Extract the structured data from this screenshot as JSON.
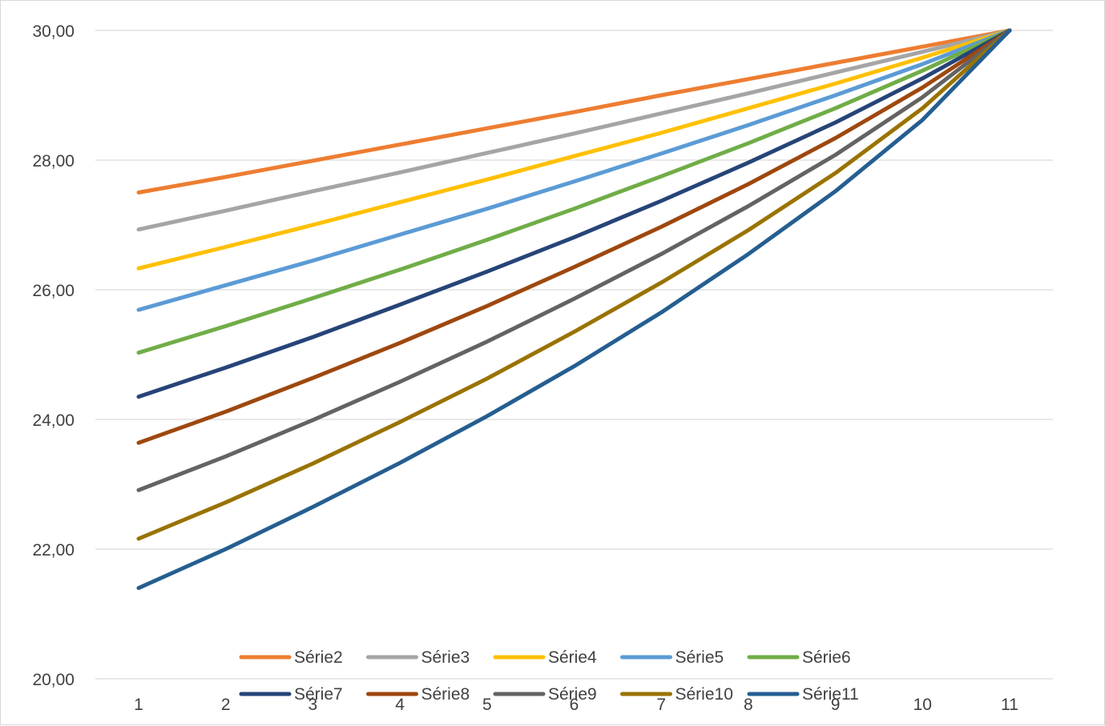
{
  "chart_data": {
    "type": "line",
    "title": "",
    "xlabel": "",
    "ylabel": "",
    "x": [
      1,
      2,
      3,
      4,
      5,
      6,
      7,
      8,
      9,
      10,
      11
    ],
    "x_tick_labels": [
      "1",
      "2",
      "3",
      "4",
      "5",
      "6",
      "7",
      "8",
      "9",
      "10",
      "11"
    ],
    "ylim": [
      20,
      30
    ],
    "y_tick_labels": [
      "20,00",
      "22,00",
      "24,00",
      "26,00",
      "28,00",
      "30,00"
    ],
    "y_ticks": [
      20,
      22,
      24,
      26,
      28,
      30
    ],
    "grid": "horizontal",
    "legend_position": "bottom",
    "series": [
      {
        "name": "Série2",
        "color": "#ED7D31",
        "values": [
          27.5,
          27.74,
          27.99,
          28.24,
          28.49,
          28.74,
          29.0,
          29.25,
          29.5,
          29.75,
          30.0
        ]
      },
      {
        "name": "Série3",
        "color": "#A5A5A5",
        "values": [
          26.93,
          27.22,
          27.52,
          27.81,
          28.11,
          28.41,
          28.72,
          29.03,
          29.35,
          29.67,
          30.0
        ]
      },
      {
        "name": "Série4",
        "color": "#FFC000",
        "values": [
          26.33,
          26.66,
          27.0,
          27.35,
          27.7,
          28.06,
          28.42,
          28.8,
          29.18,
          29.58,
          30.0
        ]
      },
      {
        "name": "Série5",
        "color": "#5B9BD5",
        "values": [
          25.69,
          26.07,
          26.45,
          26.85,
          27.25,
          27.67,
          28.1,
          28.54,
          29.0,
          29.48,
          30.0
        ]
      },
      {
        "name": "Série6",
        "color": "#70AD47",
        "values": [
          25.03,
          25.44,
          25.87,
          26.31,
          26.77,
          27.25,
          27.75,
          28.26,
          28.8,
          29.38,
          30.0
        ]
      },
      {
        "name": "Série7",
        "color": "#264478",
        "values": [
          24.35,
          24.8,
          25.27,
          25.77,
          26.28,
          26.81,
          27.37,
          27.96,
          28.58,
          29.26,
          30.0
        ]
      },
      {
        "name": "Série8",
        "color": "#9E480E",
        "values": [
          23.64,
          24.12,
          24.64,
          25.18,
          25.75,
          26.35,
          26.97,
          27.63,
          28.34,
          29.12,
          30.0
        ]
      },
      {
        "name": "Série9",
        "color": "#636363",
        "values": [
          22.91,
          23.43,
          23.99,
          24.58,
          25.2,
          25.86,
          26.55,
          27.29,
          28.08,
          28.97,
          30.0
        ]
      },
      {
        "name": "Série10",
        "color": "#997300",
        "values": [
          22.16,
          22.72,
          23.32,
          23.96,
          24.63,
          25.35,
          26.11,
          26.92,
          27.8,
          28.8,
          30.0
        ]
      },
      {
        "name": "Série11",
        "color": "#255E91",
        "values": [
          21.4,
          22.0,
          22.65,
          23.33,
          24.05,
          24.82,
          25.65,
          26.55,
          27.52,
          28.62,
          30.0
        ]
      }
    ]
  }
}
